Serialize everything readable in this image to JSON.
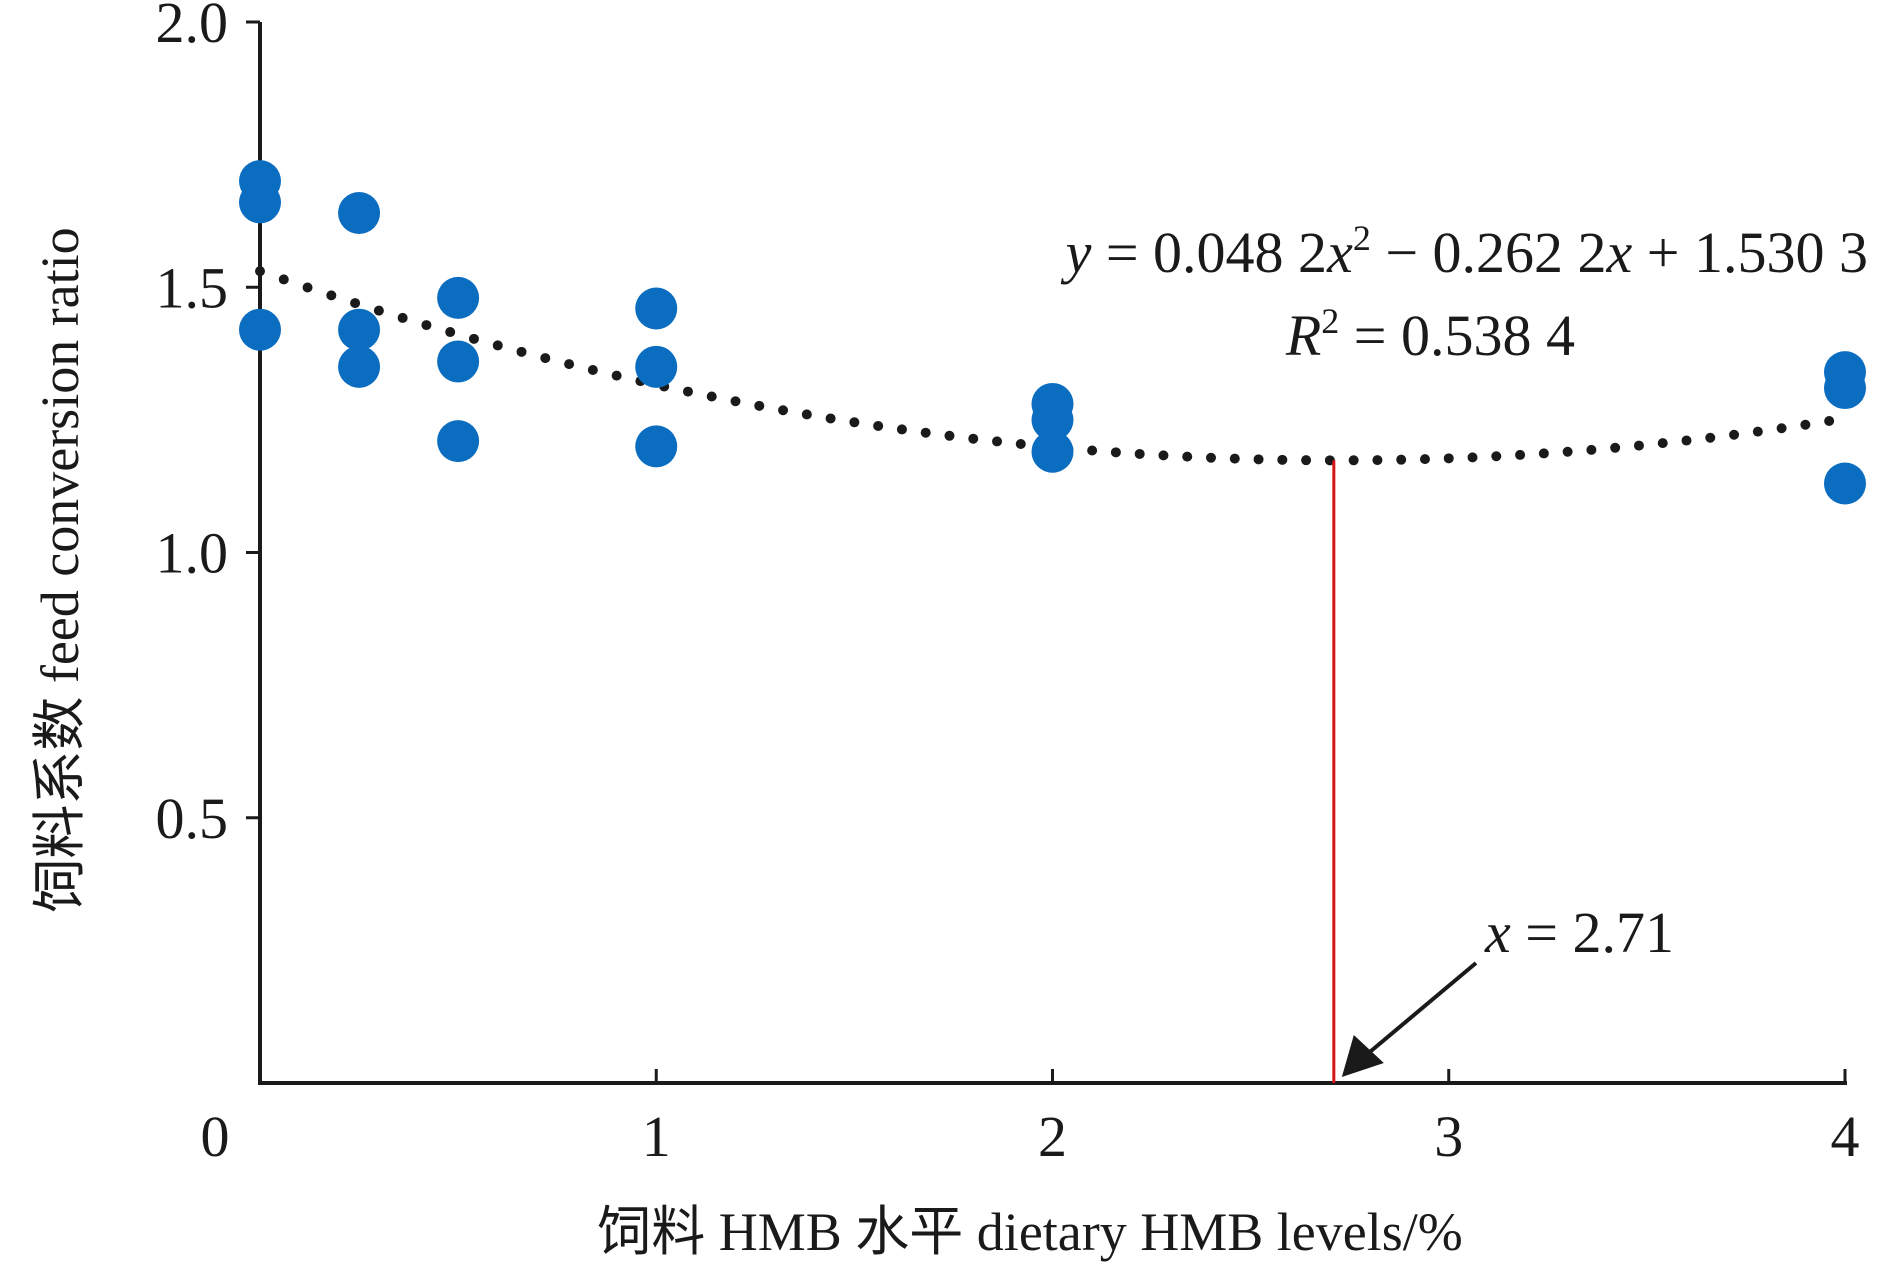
{
  "chart_data": {
    "type": "scatter",
    "xlabel": "饲料 HMB 水平 dietary HMB levels/%",
    "ylabel": "饲料系数 feed conversion ratio",
    "xlim": [
      0,
      4
    ],
    "ylim": [
      0,
      2.0
    ],
    "x_ticks": [
      "0",
      "1",
      "2",
      "3",
      "4"
    ],
    "y_ticks": [
      "0.5",
      "1.0",
      "1.5",
      "2.0"
    ],
    "x_tick_values": [
      0,
      1,
      2,
      3,
      4
    ],
    "y_tick_values": [
      0.5,
      1.0,
      1.5,
      2.0
    ],
    "grid": false,
    "point_color": "#0b6dbf",
    "points": [
      {
        "x": 0,
        "y": 1.7
      },
      {
        "x": 0,
        "y": 1.66
      },
      {
        "x": 0,
        "y": 1.42
      },
      {
        "x": 0.25,
        "y": 1.64
      },
      {
        "x": 0.25,
        "y": 1.42
      },
      {
        "x": 0.25,
        "y": 1.35
      },
      {
        "x": 0.5,
        "y": 1.48
      },
      {
        "x": 0.5,
        "y": 1.36
      },
      {
        "x": 0.5,
        "y": 1.21
      },
      {
        "x": 1,
        "y": 1.46
      },
      {
        "x": 1,
        "y": 1.35
      },
      {
        "x": 1,
        "y": 1.2
      },
      {
        "x": 2,
        "y": 1.28
      },
      {
        "x": 2,
        "y": 1.25
      },
      {
        "x": 2,
        "y": 1.19
      },
      {
        "x": 4,
        "y": 1.34
      },
      {
        "x": 4,
        "y": 1.31
      },
      {
        "x": 4,
        "y": 1.13
      }
    ],
    "trendline": {
      "type": "polynomial",
      "coefficients": [
        0.0482,
        -0.2622,
        1.5303
      ],
      "x_range": [
        0,
        4
      ],
      "style": "dotted",
      "color": "#1a1a1a"
    },
    "optimum_line": {
      "x": 2.71,
      "color": "#d7141a"
    },
    "annotations": {
      "equation": {
        "y": "y",
        "eq1": " = 0.048 2",
        "x1": "x",
        "exp": "2",
        "eq2": " − 0.262 2",
        "x2": "x",
        "eq3": " + 1.530 3"
      },
      "r2": {
        "R": "R",
        "exp": "2",
        "val": " = 0.538 4"
      },
      "optimum": {
        "x": "x",
        "val": " = 2.71"
      }
    }
  }
}
